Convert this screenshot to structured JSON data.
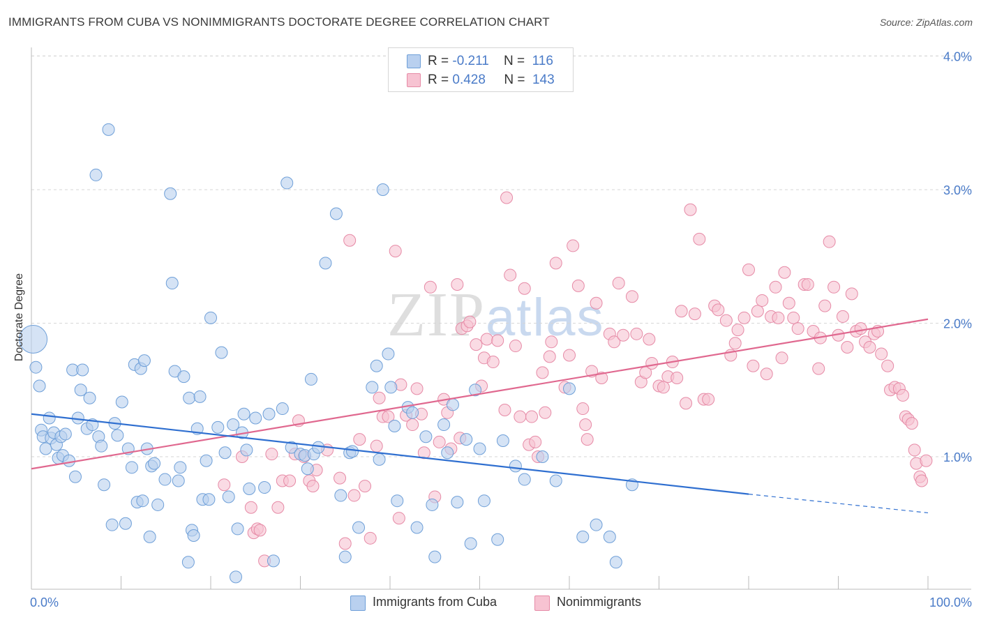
{
  "title": "IMMIGRANTS FROM CUBA VS NONIMMIGRANTS DOCTORATE DEGREE CORRELATION CHART",
  "source": "Source: ZipAtlas.com",
  "watermark": {
    "zip": "ZIP",
    "atlas": "atlas"
  },
  "legend": {
    "row1": {
      "r_label": "R = ",
      "r_value": "-0.211",
      "n_label": "N = ",
      "n_value": "116"
    },
    "row2": {
      "r_label": "R = ",
      "r_value": "0.428",
      "n_label": "N = ",
      "n_value": "143"
    }
  },
  "bottom_legend": {
    "series1": "Immigrants from Cuba",
    "series2": "Nonimmigrants"
  },
  "colors": {
    "blue_fill": "#b9d0ef",
    "blue_stroke": "#6e9fd8",
    "blue_line": "#2f6fd0",
    "pink_fill": "#f7c3d2",
    "pink_stroke": "#e68aa6",
    "pink_line": "#e0688f",
    "tick_text": "#4a7bc8"
  },
  "chart_data": {
    "type": "scatter",
    "title": "IMMIGRANTS FROM CUBA VS NONIMMIGRANTS DOCTORATE DEGREE CORRELATION CHART",
    "xlabel": "",
    "ylabel": "Doctorate Degree",
    "xlim": [
      0,
      100
    ],
    "ylim": [
      0,
      4.2
    ],
    "x_tick_labels": [
      "0.0%",
      "100.0%"
    ],
    "y_ticks": [
      1.0,
      2.0,
      3.0,
      4.0
    ],
    "y_tick_labels": [
      "1.0%",
      "2.0%",
      "3.0%",
      "4.0%"
    ],
    "grid": "horizontal dashed",
    "legend_position": "top-center",
    "series": [
      {
        "name": "Immigrants from Cuba",
        "R": -0.211,
        "N": 116,
        "trend": {
          "x": [
            0,
            80
          ],
          "y": [
            1.32,
            0.72
          ],
          "dashed_to": [
            100,
            0.58
          ]
        },
        "points": [
          [
            0.2,
            1.88,
            "big"
          ],
          [
            0.5,
            1.67
          ],
          [
            0.9,
            1.53
          ],
          [
            1.1,
            1.2
          ],
          [
            1.3,
            1.15
          ],
          [
            1.6,
            1.06
          ],
          [
            2.0,
            1.29
          ],
          [
            2.2,
            1.14
          ],
          [
            2.5,
            1.18
          ],
          [
            2.8,
            1.09
          ],
          [
            3.0,
            0.99
          ],
          [
            3.3,
            1.15
          ],
          [
            3.5,
            1.01
          ],
          [
            3.8,
            1.17
          ],
          [
            4.2,
            0.97
          ],
          [
            4.6,
            1.65
          ],
          [
            4.9,
            0.85
          ],
          [
            5.2,
            1.29
          ],
          [
            5.5,
            1.5
          ],
          [
            5.7,
            1.65
          ],
          [
            6.2,
            1.21
          ],
          [
            6.5,
            1.44
          ],
          [
            6.8,
            1.24
          ],
          [
            7.2,
            3.11
          ],
          [
            7.5,
            1.15
          ],
          [
            7.8,
            1.08
          ],
          [
            8.1,
            0.79
          ],
          [
            8.6,
            3.45
          ],
          [
            9.0,
            0.49
          ],
          [
            9.3,
            1.25
          ],
          [
            9.6,
            1.16
          ],
          [
            10.1,
            1.41
          ],
          [
            10.5,
            0.5
          ],
          [
            10.8,
            1.06
          ],
          [
            11.2,
            0.92
          ],
          [
            11.5,
            1.69
          ],
          [
            11.8,
            0.66
          ],
          [
            12.2,
            1.66
          ],
          [
            12.4,
            0.67
          ],
          [
            12.6,
            1.72
          ],
          [
            12.9,
            1.06
          ],
          [
            13.2,
            0.4
          ],
          [
            13.4,
            0.93
          ],
          [
            13.7,
            0.95
          ],
          [
            14.1,
            0.64
          ],
          [
            14.9,
            0.83
          ],
          [
            15.5,
            2.97
          ],
          [
            15.7,
            2.3
          ],
          [
            16.0,
            1.64
          ],
          [
            16.4,
            0.82
          ],
          [
            16.6,
            0.92
          ],
          [
            17.0,
            1.6
          ],
          [
            17.5,
            0.21
          ],
          [
            17.6,
            1.44
          ],
          [
            17.9,
            0.45
          ],
          [
            18.1,
            0.41
          ],
          [
            18.5,
            1.21
          ],
          [
            18.8,
            1.45
          ],
          [
            19.1,
            0.68
          ],
          [
            19.5,
            0.97
          ],
          [
            19.8,
            0.68
          ],
          [
            20.0,
            2.04
          ],
          [
            20.8,
            1.22
          ],
          [
            21.2,
            1.78
          ],
          [
            21.6,
            1.03
          ],
          [
            22.0,
            0.7
          ],
          [
            22.5,
            1.24
          ],
          [
            22.8,
            0.1
          ],
          [
            23.0,
            0.46
          ],
          [
            23.5,
            1.18
          ],
          [
            23.7,
            1.32
          ],
          [
            24.0,
            1.05
          ],
          [
            24.3,
            0.76
          ],
          [
            25.0,
            1.29
          ],
          [
            26.0,
            0.77
          ],
          [
            26.5,
            1.32
          ],
          [
            27.0,
            0.22
          ],
          [
            28.0,
            1.36
          ],
          [
            28.5,
            3.05
          ],
          [
            29.0,
            1.07
          ],
          [
            30.0,
            1.02
          ],
          [
            30.5,
            1.01
          ],
          [
            30.8,
            0.91
          ],
          [
            31.2,
            1.58
          ],
          [
            31.5,
            1.02
          ],
          [
            32.0,
            1.07
          ],
          [
            32.8,
            2.45
          ],
          [
            34.0,
            2.82
          ],
          [
            34.5,
            0.71
          ],
          [
            35.0,
            0.25
          ],
          [
            35.5,
            1.03
          ],
          [
            35.8,
            1.04
          ],
          [
            36.5,
            0.47
          ],
          [
            38.0,
            1.52
          ],
          [
            38.5,
            1.68
          ],
          [
            38.8,
            0.98
          ],
          [
            39.2,
            3.0
          ],
          [
            39.8,
            1.77
          ],
          [
            40.1,
            1.52
          ],
          [
            40.5,
            1.23
          ],
          [
            40.8,
            0.67
          ],
          [
            42.0,
            1.37
          ],
          [
            42.5,
            1.33
          ],
          [
            43.0,
            0.47
          ],
          [
            44.0,
            1.15
          ],
          [
            44.7,
            0.64
          ],
          [
            45.0,
            0.25
          ],
          [
            46.0,
            1.24
          ],
          [
            46.4,
            1.03
          ],
          [
            47.0,
            1.39
          ],
          [
            47.5,
            0.66
          ],
          [
            48.5,
            1.13
          ],
          [
            49.0,
            0.35
          ],
          [
            49.5,
            1.5
          ],
          [
            50.0,
            1.06
          ],
          [
            50.5,
            0.67
          ],
          [
            52.0,
            0.38
          ],
          [
            52.6,
            1.12
          ],
          [
            54.0,
            0.93
          ],
          [
            55.0,
            0.83
          ],
          [
            57.0,
            1.0
          ],
          [
            58.5,
            0.82
          ],
          [
            60.0,
            1.51
          ],
          [
            61.5,
            0.4
          ],
          [
            63.0,
            0.49
          ],
          [
            64.5,
            0.4
          ],
          [
            65.2,
            0.21
          ],
          [
            67.0,
            0.79
          ]
        ]
      },
      {
        "name": "Nonimmigrants",
        "R": 0.428,
        "N": 143,
        "trend": {
          "x": [
            0,
            100
          ],
          "y": [
            0.91,
            2.03
          ]
        },
        "points": [
          [
            21.5,
            0.79
          ],
          [
            23.5,
            1.0
          ],
          [
            24.5,
            0.62
          ],
          [
            24.8,
            0.43
          ],
          [
            25.2,
            0.46
          ],
          [
            25.5,
            0.45
          ],
          [
            26.0,
            0.22
          ],
          [
            26.8,
            1.02
          ],
          [
            27.5,
            0.62
          ],
          [
            28.0,
            0.82
          ],
          [
            28.8,
            0.82
          ],
          [
            29.4,
            1.02
          ],
          [
            29.8,
            1.27
          ],
          [
            30.4,
            1.0
          ],
          [
            31.0,
            0.82
          ],
          [
            31.4,
            0.78
          ],
          [
            31.8,
            0.9
          ],
          [
            33.0,
            1.05
          ],
          [
            34.4,
            0.84
          ],
          [
            35.0,
            0.35
          ],
          [
            35.5,
            2.62
          ],
          [
            36.0,
            0.71
          ],
          [
            36.6,
            1.13
          ],
          [
            37.2,
            0.78
          ],
          [
            37.8,
            0.39
          ],
          [
            38.5,
            1.08
          ],
          [
            38.8,
            1.44
          ],
          [
            39.2,
            1.3
          ],
          [
            39.8,
            1.3
          ],
          [
            40.6,
            2.54
          ],
          [
            41.0,
            0.54
          ],
          [
            41.2,
            1.54
          ],
          [
            41.8,
            1.31
          ],
          [
            42.5,
            1.24
          ],
          [
            43.0,
            1.51
          ],
          [
            43.5,
            1.32
          ],
          [
            43.8,
            1.03
          ],
          [
            44.5,
            2.27
          ],
          [
            45.0,
            0.7
          ],
          [
            45.5,
            1.11
          ],
          [
            46.0,
            1.43
          ],
          [
            46.4,
            1.33
          ],
          [
            46.8,
            1.06
          ],
          [
            47.5,
            2.29
          ],
          [
            47.8,
            1.14
          ],
          [
            48.0,
            1.96
          ],
          [
            48.6,
            1.98
          ],
          [
            48.9,
            2.01
          ],
          [
            49.6,
            1.84
          ],
          [
            50.2,
            1.53
          ],
          [
            50.5,
            1.74
          ],
          [
            50.8,
            1.88
          ],
          [
            51.5,
            1.71
          ],
          [
            52.0,
            1.87
          ],
          [
            52.8,
            1.35
          ],
          [
            53.0,
            2.94
          ],
          [
            53.4,
            2.36
          ],
          [
            54.0,
            1.83
          ],
          [
            54.5,
            1.3
          ],
          [
            55.0,
            2.26
          ],
          [
            55.5,
            1.09
          ],
          [
            55.8,
            1.3
          ],
          [
            56.2,
            1.11
          ],
          [
            56.5,
            1.0
          ],
          [
            57.0,
            1.63
          ],
          [
            57.3,
            1.33
          ],
          [
            57.8,
            1.75
          ],
          [
            58.0,
            1.86
          ],
          [
            58.5,
            2.45
          ],
          [
            59.5,
            1.52
          ],
          [
            60.0,
            1.76
          ],
          [
            60.4,
            2.58
          ],
          [
            61.0,
            2.28
          ],
          [
            61.5,
            1.36
          ],
          [
            61.8,
            1.24
          ],
          [
            62.0,
            1.13
          ],
          [
            62.5,
            1.64
          ],
          [
            63.0,
            2.15
          ],
          [
            63.6,
            1.59
          ],
          [
            64.5,
            1.92
          ],
          [
            65.0,
            1.86
          ],
          [
            65.5,
            2.3
          ],
          [
            66.0,
            1.91
          ],
          [
            67.0,
            2.2
          ],
          [
            67.5,
            1.92
          ],
          [
            68.0,
            1.56
          ],
          [
            68.5,
            1.63
          ],
          [
            68.9,
            1.88
          ],
          [
            69.2,
            1.7
          ],
          [
            70.0,
            1.53
          ],
          [
            70.5,
            1.52
          ],
          [
            71.0,
            1.6
          ],
          [
            71.5,
            1.71
          ],
          [
            72.0,
            1.59
          ],
          [
            72.5,
            2.09
          ],
          [
            73.0,
            1.4
          ],
          [
            73.5,
            2.85
          ],
          [
            74.0,
            2.07
          ],
          [
            74.5,
            2.63
          ],
          [
            75.0,
            1.43
          ],
          [
            75.5,
            1.43
          ],
          [
            76.2,
            2.13
          ],
          [
            76.6,
            2.1
          ],
          [
            77.5,
            2.02
          ],
          [
            78.0,
            1.76
          ],
          [
            78.5,
            1.85
          ],
          [
            78.8,
            1.95
          ],
          [
            79.5,
            2.04
          ],
          [
            80.0,
            2.4
          ],
          [
            80.5,
            1.68
          ],
          [
            81.0,
            2.09
          ],
          [
            81.5,
            2.17
          ],
          [
            82.0,
            1.62
          ],
          [
            82.5,
            2.05
          ],
          [
            83.0,
            2.27
          ],
          [
            83.3,
            2.04
          ],
          [
            83.7,
            1.74
          ],
          [
            84.0,
            2.38
          ],
          [
            84.5,
            2.15
          ],
          [
            85.0,
            2.04
          ],
          [
            85.5,
            1.96
          ],
          [
            86.2,
            2.29
          ],
          [
            86.6,
            2.29
          ],
          [
            87.2,
            1.94
          ],
          [
            87.8,
            1.66
          ],
          [
            88.0,
            1.89
          ],
          [
            88.5,
            2.13
          ],
          [
            89.0,
            2.61
          ],
          [
            89.5,
            2.27
          ],
          [
            90.0,
            1.91
          ],
          [
            90.5,
            2.05
          ],
          [
            91.0,
            1.82
          ],
          [
            91.5,
            2.22
          ],
          [
            92.0,
            1.94
          ],
          [
            92.5,
            1.96
          ],
          [
            93.0,
            1.86
          ],
          [
            93.5,
            1.82
          ],
          [
            94.0,
            1.92
          ],
          [
            94.4,
            1.94
          ],
          [
            94.8,
            1.77
          ],
          [
            95.5,
            1.68
          ],
          [
            95.8,
            1.5
          ],
          [
            96.3,
            1.52
          ],
          [
            96.8,
            1.51
          ],
          [
            97.2,
            1.46
          ],
          [
            97.5,
            1.3
          ],
          [
            97.8,
            1.28
          ],
          [
            98.2,
            1.25
          ],
          [
            98.5,
            1.05
          ],
          [
            98.7,
            0.95
          ],
          [
            99.1,
            0.85
          ],
          [
            99.3,
            0.82
          ],
          [
            99.8,
            0.97
          ]
        ]
      }
    ]
  }
}
